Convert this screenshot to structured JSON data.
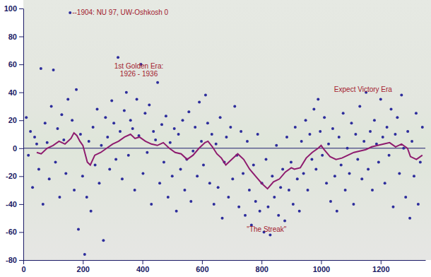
{
  "chart_data": {
    "type": "scatter",
    "xlim": [
      0,
      1350
    ],
    "xticks": [
      0,
      200,
      400,
      600,
      800,
      1000,
      1200
    ],
    "ylim": [
      -80,
      100
    ],
    "yticks": [
      -80,
      -60,
      -40,
      -20,
      0,
      20,
      40,
      60,
      80,
      100
    ],
    "reference_y": 0,
    "series": [
      {
        "type": "scatter",
        "marker": "circle",
        "color": "#2d2d9c",
        "x": [
          10,
          17,
          24,
          31,
          38,
          45,
          52,
          59,
          66,
          73,
          80,
          87,
          94,
          101,
          108,
          115,
          122,
          129,
          136,
          143,
          150,
          157,
          164,
          171,
          178,
          185,
          192,
          199,
          206,
          213,
          220,
          227,
          234,
          241,
          248,
          255,
          262,
          269,
          276,
          283,
          290,
          297,
          304,
          311,
          318,
          325,
          332,
          339,
          346,
          353,
          360,
          367,
          374,
          381,
          388,
          395,
          402,
          409,
          416,
          423,
          430,
          437,
          444,
          451,
          458,
          465,
          472,
          479,
          486,
          493,
          500,
          507,
          514,
          521,
          528,
          535,
          542,
          549,
          556,
          563,
          570,
          577,
          584,
          591,
          598,
          605,
          612,
          619,
          626,
          633,
          640,
          647,
          654,
          661,
          668,
          675,
          682,
          689,
          696,
          703,
          710,
          717,
          724,
          731,
          738,
          745,
          752,
          759,
          766,
          773,
          780,
          787,
          794,
          801,
          808,
          815,
          822,
          829,
          836,
          843,
          850,
          857,
          864,
          871,
          878,
          885,
          892,
          899,
          906,
          913,
          920,
          927,
          934,
          941,
          948,
          955,
          962,
          969,
          976,
          983,
          990,
          997,
          1004,
          1011,
          1018,
          1025,
          1032,
          1039,
          1046,
          1053,
          1060,
          1067,
          1074,
          1081,
          1088,
          1095,
          1102,
          1109,
          1116,
          1123,
          1130,
          1137,
          1144,
          1151,
          1158,
          1165,
          1172,
          1179,
          1186,
          1193,
          1200,
          1207,
          1214,
          1221,
          1228,
          1235,
          1242,
          1249,
          1256,
          1263,
          1270,
          1277,
          1284,
          1291,
          1298,
          1305,
          1312,
          1319,
          1326,
          1333,
          1340
        ],
        "values": [
          22,
          -5,
          12,
          -28,
          8,
          3,
          -15,
          57,
          -40,
          18,
          4,
          -22,
          30,
          56,
          -10,
          14,
          -35,
          24,
          6,
          -18,
          35,
          97,
          20,
          -30,
          42,
          -58,
          10,
          -20,
          -76,
          -35,
          5,
          -45,
          15,
          -12,
          28,
          -25,
          2,
          -66,
          22,
          8,
          -15,
          34,
          18,
          -8,
          65,
          12,
          -22,
          27,
          40,
          -5,
          20,
          14,
          -30,
          35,
          9,
          60,
          -18,
          25,
          -3,
          31,
          -40,
          12,
          6,
          47,
          -25,
          17,
          -10,
          23,
          -35,
          4,
          -20,
          14,
          -45,
          10,
          -15,
          20,
          -30,
          -8,
          26,
          -38,
          -2,
          15,
          -20,
          33,
          5,
          -12,
          38,
          18,
          -25,
          10,
          -40,
          3,
          -28,
          22,
          -50,
          -10,
          8,
          -35,
          15,
          -22,
          30,
          -5,
          -42,
          12,
          -18,
          -48,
          5,
          -30,
          -55,
          -12,
          -38,
          10,
          -45,
          -25,
          -60,
          -8,
          -42,
          -62,
          -20,
          -35,
          2,
          -48,
          -28,
          -15,
          -52,
          8,
          -30,
          -10,
          -40,
          15,
          -22,
          -45,
          5,
          -18,
          20,
          -30,
          10,
          -8,
          28,
          -15,
          35,
          12,
          -5,
          22,
          -25,
          3,
          -38,
          14,
          -20,
          -45,
          8,
          -12,
          25,
          -30,
          0,
          -18,
          18,
          -40,
          10,
          -8,
          30,
          -22,
          5,
          40,
          -15,
          12,
          -30,
          20,
          3,
          -10,
          35,
          8,
          -25,
          15,
          -5,
          28,
          -42,
          10,
          22,
          -18,
          38,
          0,
          -35,
          12,
          -50,
          5,
          -20,
          25,
          -40,
          -10,
          15
        ]
      },
      {
        "type": "line",
        "line_style": "solid",
        "color": "#8e1b6e",
        "x": [
          45,
          60,
          80,
          100,
          120,
          140,
          160,
          170,
          180,
          190,
          200,
          215,
          225,
          240,
          260,
          280,
          300,
          320,
          340,
          360,
          375,
          390,
          410,
          430,
          450,
          470,
          490,
          510,
          530,
          550,
          570,
          590,
          610,
          620,
          635,
          650,
          665,
          680,
          700,
          720,
          740,
          760,
          780,
          800,
          820,
          840,
          860,
          880,
          900,
          910,
          930,
          950,
          970,
          990,
          1000,
          1010,
          1030,
          1050,
          1070,
          1090,
          1110,
          1130,
          1150,
          1170,
          1190,
          1210,
          1230,
          1250,
          1270,
          1290,
          1300,
          1320,
          1340
        ],
        "values": [
          -3,
          -4,
          0,
          2,
          5,
          3,
          7,
          11,
          9,
          5,
          2,
          -10,
          -12,
          -5,
          -3,
          0,
          3,
          5,
          8,
          10,
          7,
          8,
          5,
          3,
          2,
          4,
          0,
          -3,
          -4,
          -8,
          -5,
          0,
          4,
          5,
          1,
          -4,
          -7,
          -12,
          -8,
          -4,
          -8,
          -15,
          -20,
          -25,
          -29,
          -24,
          -22,
          -17,
          -14,
          -15,
          -14,
          -7,
          -3,
          0,
          2,
          -1,
          -6,
          -8,
          -7,
          -5,
          -3,
          -2,
          -1,
          1,
          2,
          3,
          4,
          1,
          3,
          0,
          -6,
          -8,
          -5
        ]
      }
    ],
    "annotations": [
      {
        "text": "--1904: NU 97, UW-Oshkosh 0",
        "x": 157,
        "y": 97
      },
      {
        "lines": [
          "1st Golden Era:",
          "1926 - 1936"
        ],
        "x": 388,
        "y": 57
      },
      {
        "text": "Expect Victory Era",
        "x": 1141,
        "y": 42
      },
      {
        "text": "\"The Streak\"",
        "x": 817,
        "y": -58
      }
    ]
  }
}
